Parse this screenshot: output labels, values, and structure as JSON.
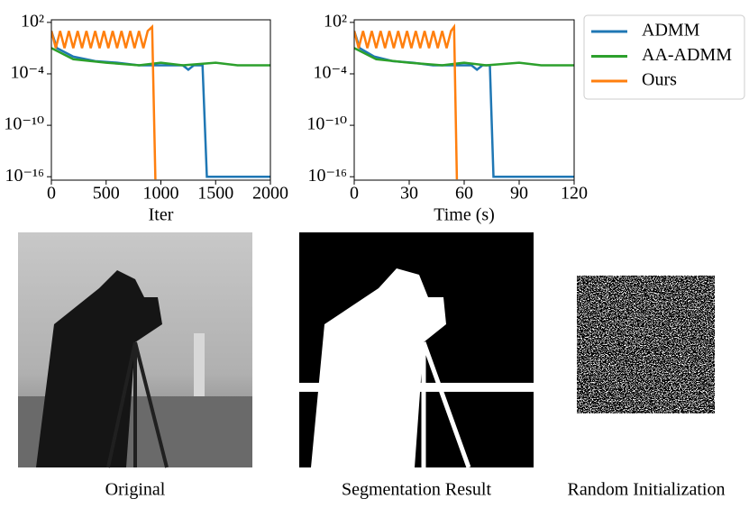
{
  "chart_data": [
    {
      "type": "line",
      "xlabel": "Iter",
      "xlim": [
        0,
        2000
      ],
      "xticks": [
        0,
        500,
        1000,
        1500,
        2000
      ],
      "ylim": [
        4e-17,
        200
      ],
      "log_y": true,
      "yticks": [
        {
          "value": 100,
          "label": "10²"
        },
        {
          "value": 0.0001,
          "label": "10⁻⁴"
        },
        {
          "value": 1e-10,
          "label": "10⁻¹⁰"
        },
        {
          "value": 1e-16,
          "label": "10⁻¹⁶"
        }
      ],
      "legend": "outside-right",
      "series": [
        {
          "name": "ADMM",
          "color": "#1f77b4",
          "x": [
            0,
            50,
            200,
            400,
            600,
            800,
            1000,
            1200,
            1250,
            1300,
            1380,
            1420,
            2000
          ],
          "values": [
            10,
            0.1,
            0.01,
            0.003,
            0.002,
            0.001,
            0.001,
            0.001,
            0.0003,
            0.001,
            0.001,
            1e-16,
            1e-16
          ]
        },
        {
          "name": "AA-ADMM",
          "color": "#2ca02c",
          "x": [
            0,
            200,
            500,
            800,
            1000,
            1200,
            1500,
            1700,
            2000
          ],
          "values": [
            0.1,
            0.005,
            0.002,
            0.001,
            0.002,
            0.001,
            0.002,
            0.001,
            0.001
          ]
        },
        {
          "name": "Ours",
          "color": "#ff7f0e",
          "x": [
            0,
            40,
            80,
            120,
            160,
            200,
            240,
            280,
            320,
            360,
            400,
            440,
            480,
            520,
            560,
            600,
            640,
            680,
            720,
            760,
            800,
            840,
            880,
            920,
            950
          ],
          "values": [
            10,
            0.1,
            10,
            0.1,
            10,
            0.1,
            10,
            0.1,
            10,
            0.1,
            10,
            0.1,
            10,
            0.1,
            10,
            0.1,
            10,
            0.1,
            10,
            0.1,
            10,
            0.1,
            10,
            30,
            5e-17
          ]
        }
      ]
    },
    {
      "type": "line",
      "xlabel": "Time (s)",
      "xlim": [
        0,
        120
      ],
      "xticks": [
        0,
        30,
        60,
        90,
        120
      ],
      "ylim": [
        4e-17,
        200
      ],
      "log_y": true,
      "yticks": [
        {
          "value": 100,
          "label": "10²"
        },
        {
          "value": 0.0001,
          "label": "10⁻⁴"
        },
        {
          "value": 1e-10,
          "label": "10⁻¹⁰"
        },
        {
          "value": 1e-16,
          "label": "10⁻¹⁶"
        }
      ],
      "series": [
        {
          "color": "#1f77b4",
          "x": [
            0,
            3,
            11,
            21,
            32,
            43,
            53,
            64,
            67,
            70,
            74,
            76,
            120
          ],
          "values": [
            10,
            0.1,
            0.01,
            0.003,
            0.002,
            0.001,
            0.001,
            0.001,
            0.0003,
            0.001,
            0.001,
            1e-16,
            1e-16
          ]
        },
        {
          "color": "#2ca02c",
          "x": [
            0,
            12,
            30,
            48,
            60,
            72,
            90,
            102,
            120
          ],
          "values": [
            0.1,
            0.005,
            0.002,
            0.001,
            0.002,
            0.001,
            0.002,
            0.001,
            0.001
          ]
        },
        {
          "color": "#ff7f0e",
          "x": [
            0,
            2.4,
            4.8,
            7.2,
            9.6,
            12,
            14.4,
            16.8,
            19.2,
            21.6,
            24,
            26.4,
            28.8,
            31.2,
            33.6,
            36,
            38.4,
            40.8,
            43.2,
            45.6,
            48,
            50.4,
            52.8,
            54.5,
            56
          ],
          "values": [
            10,
            0.1,
            10,
            0.1,
            10,
            0.1,
            10,
            0.1,
            10,
            0.1,
            10,
            0.1,
            10,
            0.1,
            10,
            0.1,
            10,
            0.1,
            10,
            0.1,
            10,
            0.1,
            10,
            30,
            5e-17
          ]
        }
      ]
    }
  ],
  "images": [
    {
      "caption": "Original"
    },
    {
      "caption": "Segmentation Result"
    },
    {
      "caption": "Random Initialization"
    }
  ]
}
